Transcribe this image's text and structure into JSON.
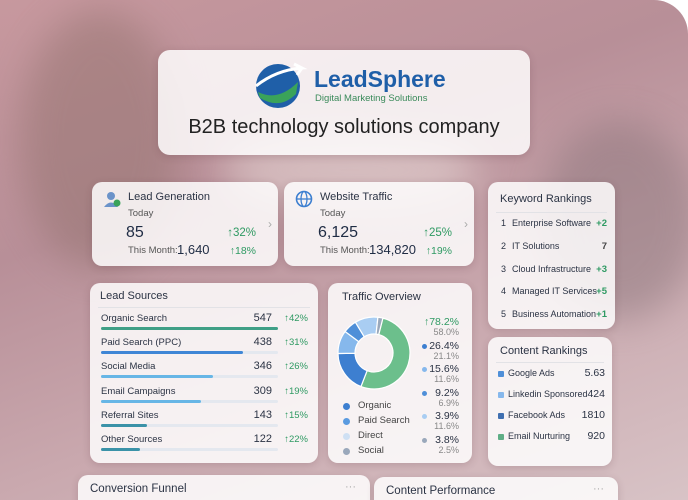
{
  "header": {
    "logo": "LeadSphere",
    "tagline": "Digital Marketing Solutions",
    "title": "B2B technology solutions company"
  },
  "lead_generation": {
    "title": "Lead Generation",
    "period": "Today",
    "value": "85",
    "change": "↑32%",
    "month_label": "This Month:",
    "month_value": "1,640",
    "month_change": "↑18%"
  },
  "website_traffic": {
    "title": "Website Traffic",
    "period": "Today",
    "value": "6,125",
    "change": "↑25%",
    "month_label": "This Month:",
    "month_value": "134,820",
    "month_change": "↑19%"
  },
  "keyword_rankings": {
    "title": "Keyword Rankings",
    "items": [
      {
        "rank": "1",
        "name": "Enterprise Software",
        "change": "+2"
      },
      {
        "rank": "2",
        "name": "IT Solutions",
        "change": "7"
      },
      {
        "rank": "3",
        "name": "Cloud Infrastructure",
        "change": "+3"
      },
      {
        "rank": "4",
        "name": "Managed IT Services",
        "change": "+5"
      },
      {
        "rank": "5",
        "name": "Business Automation",
        "change": "+1"
      }
    ]
  },
  "lead_sources": {
    "title": "Lead Sources",
    "rows": [
      {
        "name": "Organic Search",
        "value": 547,
        "change": "↑42%",
        "color": "#3f9f86"
      },
      {
        "name": "Paid Search (PPC)",
        "value": 438,
        "change": "↑31%",
        "color": "#3f86d6"
      },
      {
        "name": "Social Media",
        "value": 346,
        "change": "↑26%",
        "color": "#67b6e6"
      },
      {
        "name": "Email Campaigns",
        "value": 309,
        "change": "↑19%",
        "color": "#67b6e6"
      },
      {
        "name": "Referral Sites",
        "value": 143,
        "change": "↑15%",
        "color": "#3a92a8"
      },
      {
        "name": "Other Sources",
        "value": 122,
        "change": "↑22%",
        "color": "#3a92a8"
      }
    ]
  },
  "traffic_overview": {
    "title": "Traffic Overview",
    "stats": [
      {
        "change": "↑78.2%",
        "share": 58.0,
        "share_label": "58.0%",
        "color": "#6cbf8c"
      },
      {
        "change": "26.4%",
        "share": 21.1,
        "share_label": "21.1%",
        "color": "#3d7fd0"
      },
      {
        "change": "15.6%",
        "share": 11.6,
        "share_label": "11.6%",
        "color": "#86b8ec"
      },
      {
        "change": "9.2%",
        "share": 6.9,
        "share_label": "6.9%",
        "color": "#4f8fd8"
      },
      {
        "change": "3.9%",
        "share": 11.6,
        "share_label": "11.6%",
        "color": "#a9cdf2"
      },
      {
        "change": "3.8%",
        "share": 2.5,
        "share_label": "2.5%",
        "color": "#9aa8bb"
      }
    ],
    "legend": [
      {
        "name": "Organic",
        "color": "#3d7fd0"
      },
      {
        "name": "Paid Search",
        "color": "#5a9be0"
      },
      {
        "name": "Direct",
        "color": "#cfe0f3"
      },
      {
        "name": "Social",
        "color": "#9aa8bb"
      }
    ]
  },
  "content_rankings": {
    "title": "Content Rankings",
    "items": [
      {
        "name": "Google Ads",
        "value": "5.63",
        "color": "#4f8fd8"
      },
      {
        "name": "Linkedin Sponsored",
        "value": "424",
        "color": "#86b8ec"
      },
      {
        "name": "Facebook Ads",
        "value": "1810",
        "color": "#3f6fb0"
      },
      {
        "name": "Email Nurturing",
        "value": "920",
        "color": "#5fae86"
      }
    ]
  },
  "conversion_funnel": {
    "title": "Conversion Funnel"
  },
  "content_performance": {
    "title": "Content Performance"
  }
}
